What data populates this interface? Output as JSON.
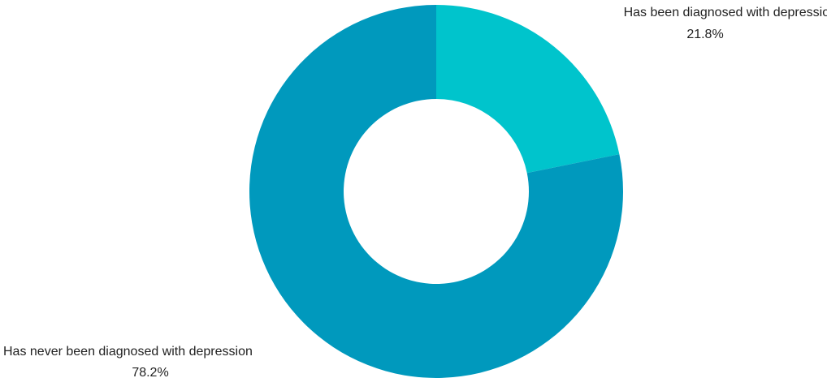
{
  "chart_data": {
    "type": "pie",
    "variant": "donut",
    "title": "",
    "categories": [
      "Has been diagnosed with depression",
      "Has never been diagnosed with depression"
    ],
    "values": [
      21.8,
      78.2
    ],
    "value_labels": [
      "21.8%",
      "78.2%"
    ],
    "colors": [
      "#00C4CC",
      "#0099BD"
    ],
    "legend": "none",
    "label_placement": "outside"
  }
}
